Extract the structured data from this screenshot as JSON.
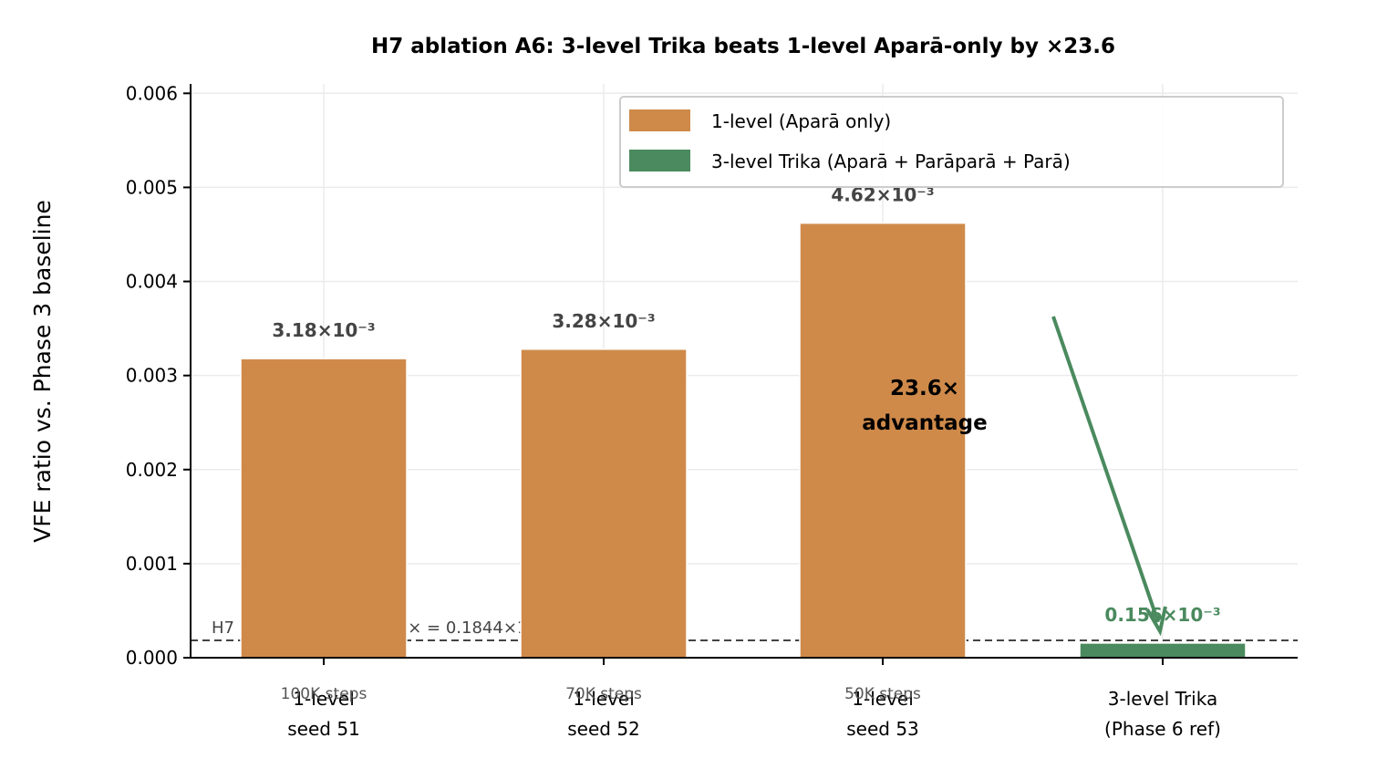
{
  "chart_data": {
    "type": "bar",
    "title": "H7 ablation A6: 3-level Trika beats 1-level Aparā-only by ×23.6",
    "ylabel": "VFE ratio vs. Phase 3 baseline",
    "xlabel": "",
    "ylim": [
      0,
      0.0061
    ],
    "yticks": [
      "0.000",
      "0.001",
      "0.002",
      "0.003",
      "0.004",
      "0.005",
      "0.006"
    ],
    "ytick_values": [
      0,
      0.001,
      0.002,
      0.003,
      0.004,
      0.005,
      0.006
    ],
    "grid": true,
    "legend_position": "top-right",
    "categories": [
      {
        "line1": "1-level",
        "line2": "seed 51",
        "note": "100K steps"
      },
      {
        "line1": "1-level",
        "line2": "seed 52",
        "note": "70K steps"
      },
      {
        "line1": "1-level",
        "line2": "seed 53",
        "note": "50K steps"
      },
      {
        "line1": "3-level Trika",
        "line2": "(Phase 6 ref)",
        "note": ""
      }
    ],
    "series": [
      {
        "name": "1-level (Aparā only)",
        "color": "#CF8A4A",
        "values": [
          0.00318,
          0.00328,
          0.00462,
          null
        ]
      },
      {
        "name": "3-level Trika (Aparā + Parāparā + Parā)",
        "color": "#4A8A5E",
        "values": [
          null,
          null,
          null,
          0.000156
        ]
      }
    ],
    "bar_labels": [
      "3.18×10⁻³",
      "3.28×10⁻³",
      "4.62×10⁻³",
      "0.156×10⁻³"
    ],
    "threshold": {
      "value": 0.0001844,
      "label": "H7 pass threshold (1.18× = 0.1844×10⁻³)"
    },
    "annotation": {
      "line1": "23.6×",
      "line2": "advantage",
      "color": "#4A8A5E"
    }
  }
}
